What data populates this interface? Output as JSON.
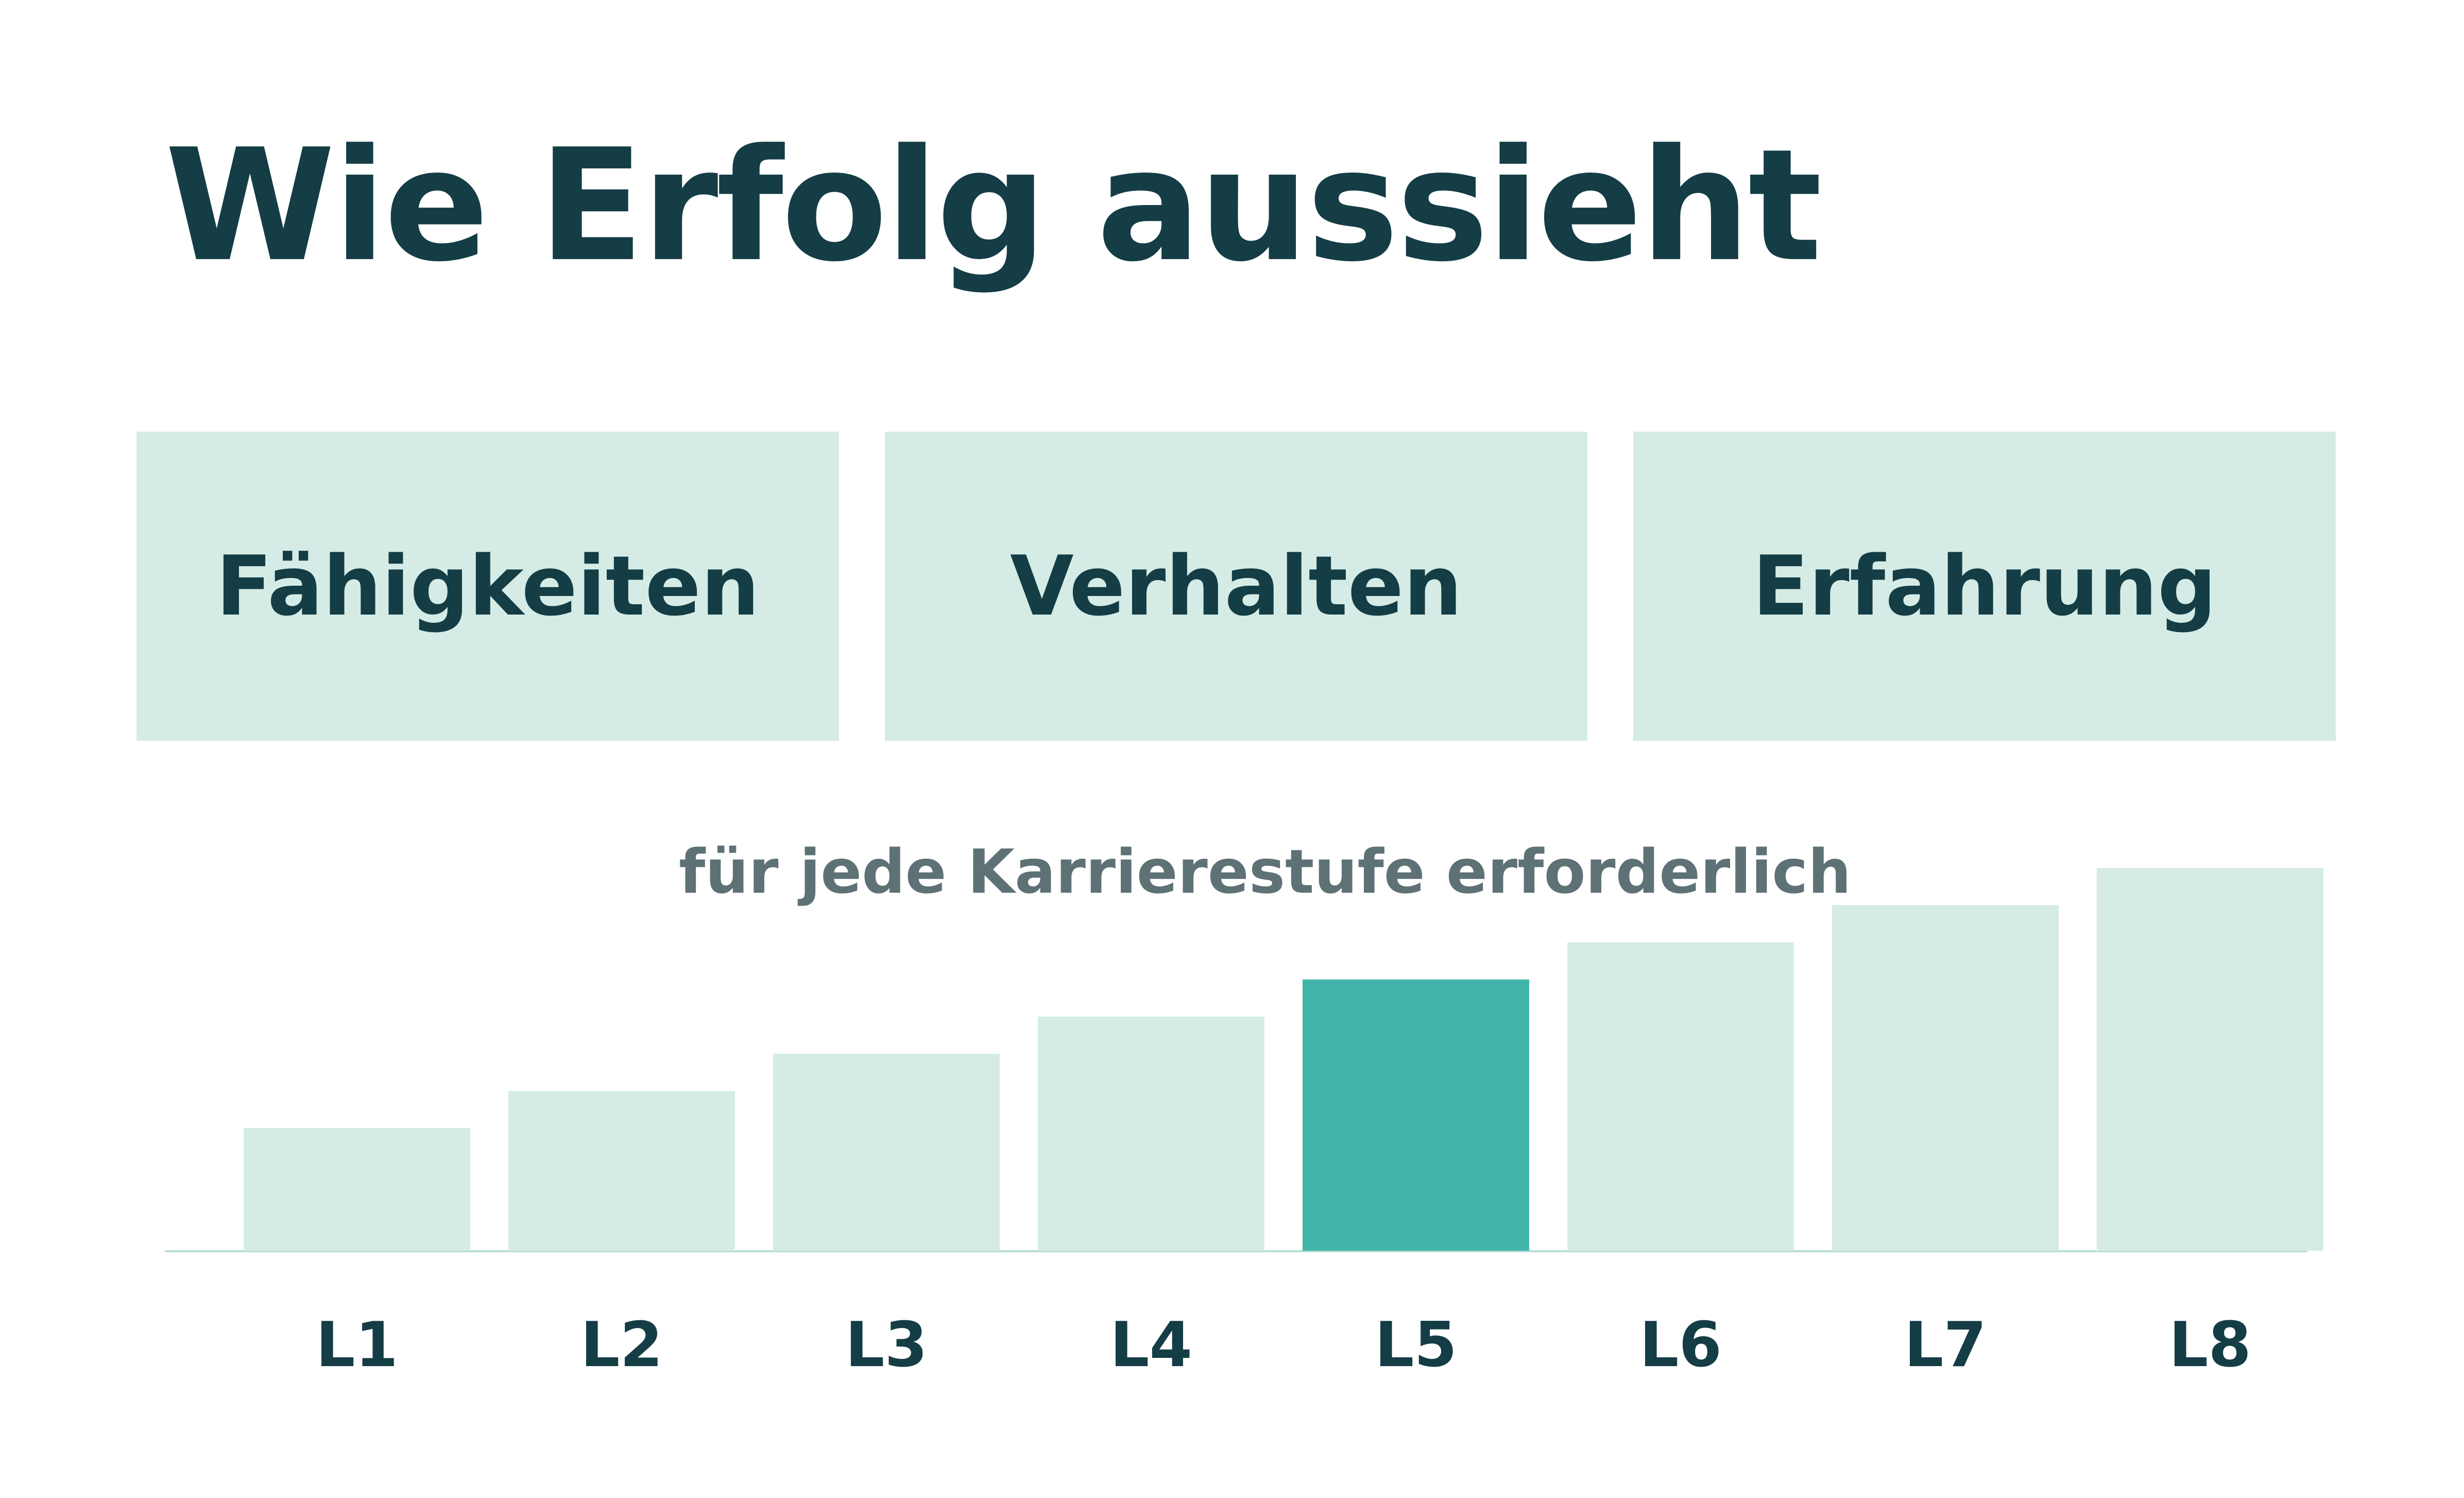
{
  "title": "Wie Erfolg aussieht",
  "boxes": [
    {
      "label": "Fähigkeiten"
    },
    {
      "label": "Verhalten"
    },
    {
      "label": "Erfahrung"
    }
  ],
  "colors": {
    "title": "#143d45",
    "box_background": "#d5ece6",
    "bar": "#d5ece6",
    "bar_highlight": "#40b4a8",
    "subtitle": "#5e7276",
    "baseline": "#b9ddd6"
  },
  "chart_data": {
    "type": "bar",
    "title": "",
    "subtitle": "für jede Karrierestufe erforderlich",
    "xlabel": "",
    "ylabel": "",
    "categories": [
      "L1",
      "L2",
      "L3",
      "L4",
      "L5",
      "L6",
      "L7",
      "L8"
    ],
    "values": [
      1,
      2,
      3,
      4,
      5,
      6,
      7,
      8
    ],
    "ylim": [
      -2.3,
      8
    ],
    "highlighted_category": "L5",
    "grid": false,
    "legend": "none"
  }
}
